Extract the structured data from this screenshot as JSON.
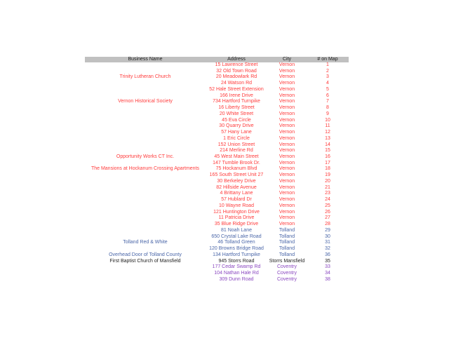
{
  "colors": {
    "Vernon": "#ff3b3b",
    "Tolland": "#4a66a8",
    "Storrs Mansfield": "#222222",
    "Coventry": "#8a48c0"
  },
  "headers": [
    "Business Name",
    "Address",
    "City",
    "# on Map"
  ],
  "rows": [
    [
      "",
      "15 Lawrence Street",
      "Vernon",
      "1"
    ],
    [
      "",
      "32 Old Town Road",
      "Vernon",
      "2"
    ],
    [
      "Trinity Lutheran Church",
      "20 Meadowlark Rd",
      "Vernon",
      "3"
    ],
    [
      "",
      "24 Watson Rd",
      "Vernon",
      "4"
    ],
    [
      "",
      "52 Hale Street Extension",
      "Vernon",
      "5"
    ],
    [
      "",
      "166 Irene Drive",
      "Vernon",
      "6"
    ],
    [
      "Vernon Historical Society",
      "734 Hartford Turnpike",
      "Vernon",
      "7"
    ],
    [
      "",
      "16 Liberty Street",
      "Vernon",
      "8"
    ],
    [
      "",
      "20 White Street",
      "Vernon",
      "9"
    ],
    [
      "",
      "45 Eva Circle",
      "Vernon",
      "10"
    ],
    [
      "",
      "30 Quarry Drive",
      "Vernon",
      "11"
    ],
    [
      "",
      "57 Hany Lane",
      "Vernon",
      "12"
    ],
    [
      "",
      "1 Eric Circle",
      "Vernon",
      "13"
    ],
    [
      "",
      "152 Union Street",
      "Vernon",
      "14"
    ],
    [
      "",
      "214 Merline Rd",
      "Vernon",
      "15"
    ],
    [
      "Opportunity Works CT Inc.",
      "45 West Main Street",
      "Vernon",
      "16"
    ],
    [
      "",
      "147 Tumble Brook Dr.",
      "Vernon",
      "17"
    ],
    [
      "The Mansions at Hockanum Crossing Apartments",
      "75 Hockanum Blvd",
      "Vernon",
      "18"
    ],
    [
      "",
      "165 South Street Unit 27",
      "Vernon",
      "19"
    ],
    [
      "",
      "30 Berkeley Drive",
      "Vernon",
      "20"
    ],
    [
      "",
      "82 Hillside Avenue",
      "Vernon",
      "21"
    ],
    [
      "",
      "4 Brittany Lane",
      "Vernon",
      "23"
    ],
    [
      "",
      "57 Hublard Dr",
      "Vernon",
      "24"
    ],
    [
      "",
      "10 Wayne Road",
      "Vernon",
      "25"
    ],
    [
      "",
      "121 Huntington Drive",
      "Vernon",
      "26"
    ],
    [
      "",
      "11 Patricia Drive",
      "Vernon",
      "27"
    ],
    [
      "",
      "35 Blue Ridge Drive",
      "Vernon",
      "28"
    ],
    [
      "",
      "81 Noah Lane",
      "Tolland",
      "29"
    ],
    [
      "",
      "650 Crystal Lake Road",
      "Tolland",
      "30"
    ],
    [
      "Tolland Red & White",
      "46 Tolland Green",
      "Tolland",
      "31"
    ],
    [
      "",
      "120 Browns Bridge Road",
      "Tolland",
      "32"
    ],
    [
      "Overhead Door of Tolland County",
      "134 Hartford Turnpike",
      "Tolland",
      "36"
    ],
    [
      "First Baptist Church of Mansfield",
      "945 Storrs Road",
      "Storrs Mansfield",
      "35"
    ],
    [
      "",
      "177 Cedar Swamp Rd",
      "Coventry",
      "33"
    ],
    [
      "",
      "104 Nathan Hale Rd",
      "Coventry",
      "34"
    ],
    [
      "",
      "309 Dunn Road",
      "Coventry",
      "38"
    ]
  ]
}
